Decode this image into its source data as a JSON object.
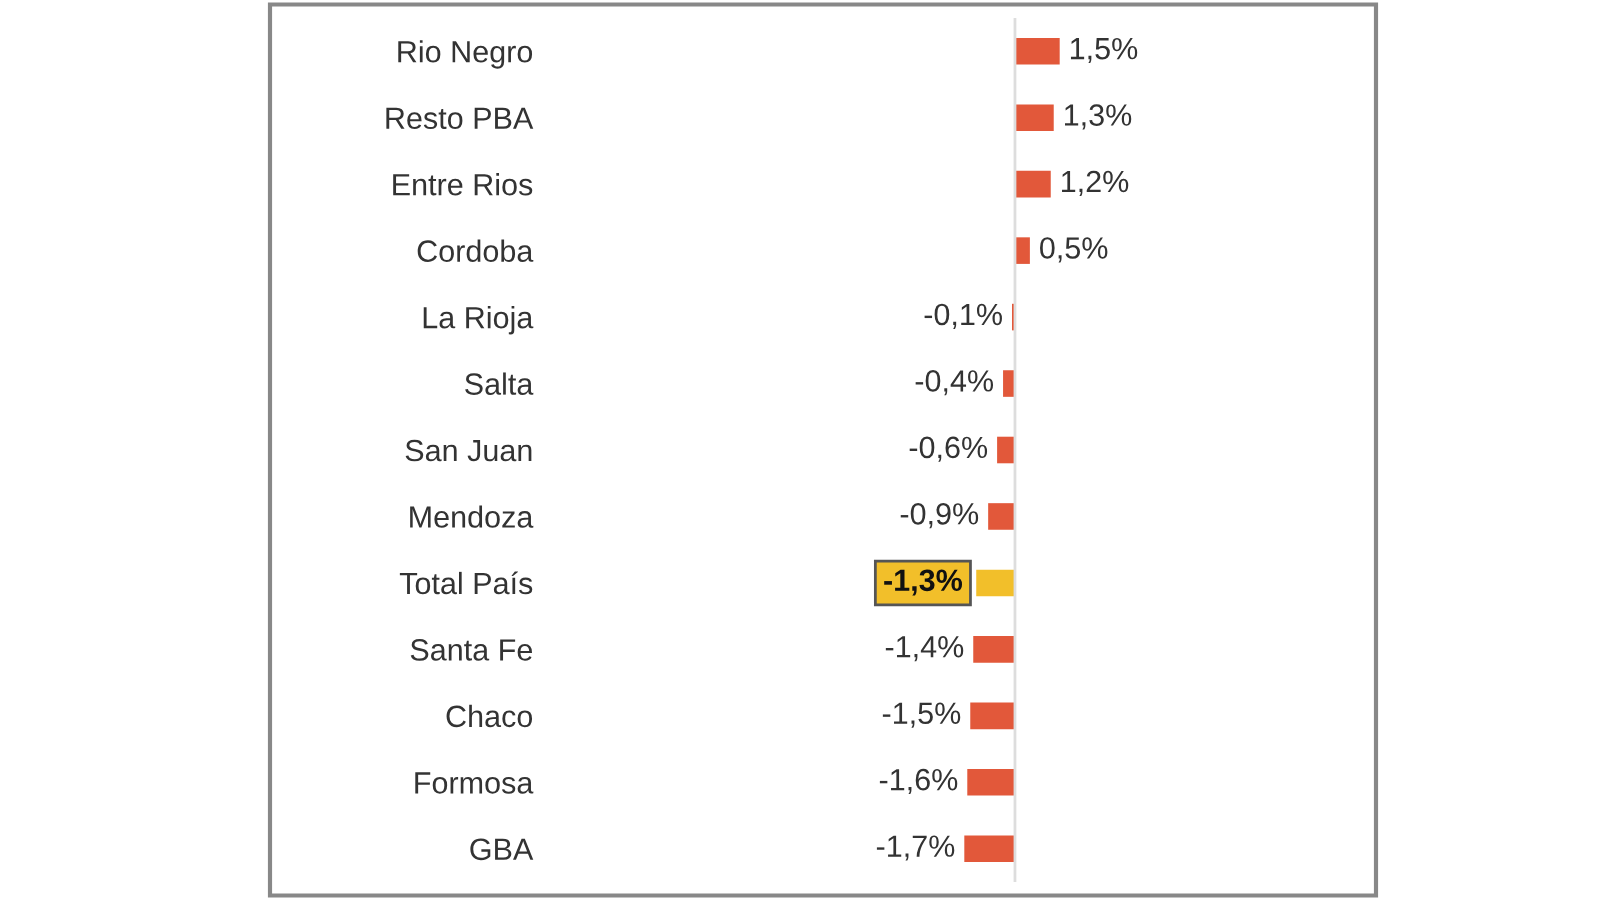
{
  "chart_data": {
    "type": "bar",
    "orientation": "horizontal",
    "categories": [
      "Rio Negro",
      "Resto PBA",
      "Entre Rios",
      "Cordoba",
      "La Rioja",
      "Salta",
      "San Juan",
      "Mendoza",
      "Total País",
      "Santa Fe",
      "Chaco",
      "Formosa",
      "GBA"
    ],
    "values": [
      1.5,
      1.3,
      1.2,
      0.5,
      -0.1,
      -0.4,
      -0.6,
      -0.9,
      -1.3,
      -1.4,
      -1.5,
      -1.6,
      -1.7
    ],
    "value_labels": [
      "1,5%",
      "1,3%",
      "1,2%",
      "0,5%",
      "-0,1%",
      "-0,4%",
      "-0,6%",
      "-0,9%",
      "-1,3%",
      "-1,4%",
      "-1,5%",
      "-1,6%",
      "-1,7%"
    ],
    "colors": [
      "#e2583a",
      "#e2583a",
      "#e2583a",
      "#e2583a",
      "#e2583a",
      "#e2583a",
      "#e2583a",
      "#e2583a",
      "#f2bf2a",
      "#e2583a",
      "#e2583a",
      "#e2583a",
      "#e2583a"
    ],
    "tick_labels": "y",
    "grid": false,
    "legend": false
  }
}
